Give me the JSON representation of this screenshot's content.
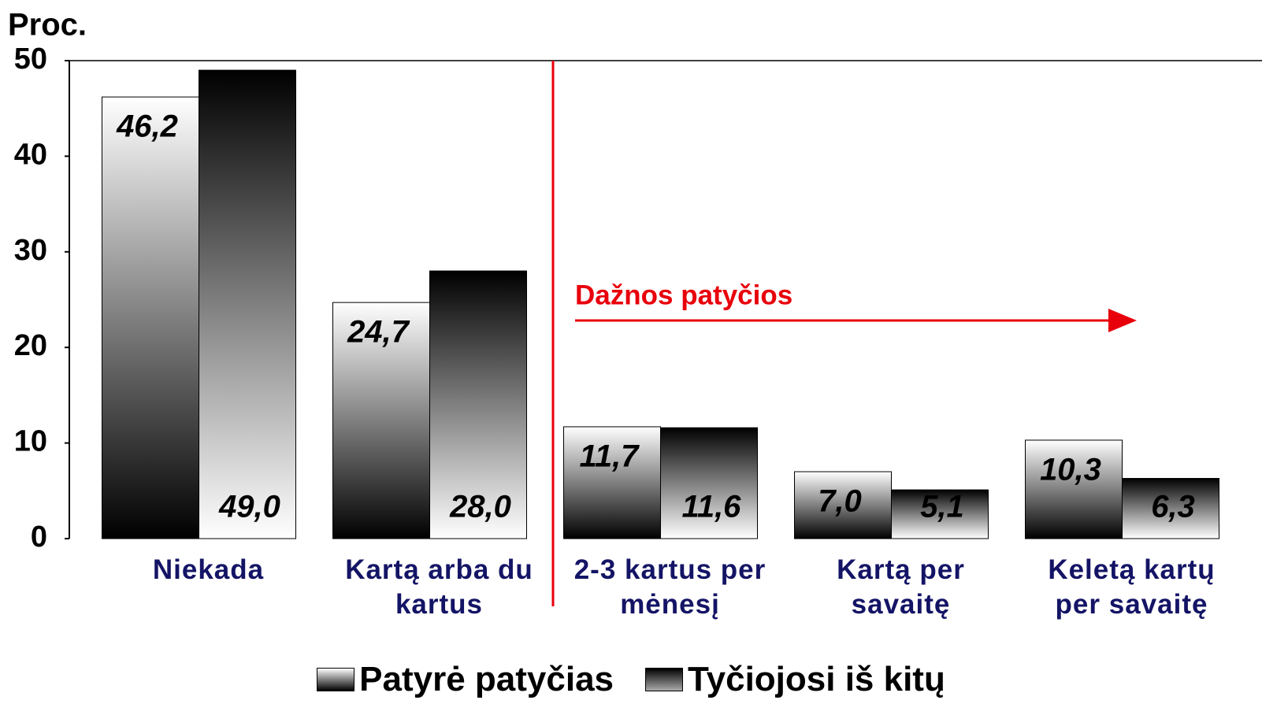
{
  "chart_data": {
    "type": "bar",
    "y_label": "Proc.",
    "annotation": "Dažnos patyčios",
    "categories": [
      "Niekada",
      "Kartą arba du kartus",
      "2-3 kartus per mėnesį",
      "Kartą per savaitę",
      "Keletą kartų per savaitę"
    ],
    "series": [
      {
        "name": "Patyrė patyčias",
        "color": "#888888",
        "values": [
          46.2,
          24.7,
          11.7,
          7.0,
          10.3
        ],
        "value_labels": [
          "46,2",
          "24,7",
          "11,7",
          "7,0",
          "10,3"
        ]
      },
      {
        "name": "Tyčiojosi iš kitų",
        "color": "#222222",
        "values": [
          49.0,
          28.0,
          11.6,
          5.1,
          6.3
        ],
        "value_labels": [
          "49,0",
          "28,0",
          "11,6",
          "5,1",
          "6,3"
        ]
      }
    ],
    "ylim": [
      0,
      50
    ],
    "yticks": [
      0,
      10,
      20,
      30,
      40,
      50
    ],
    "grid": false
  }
}
